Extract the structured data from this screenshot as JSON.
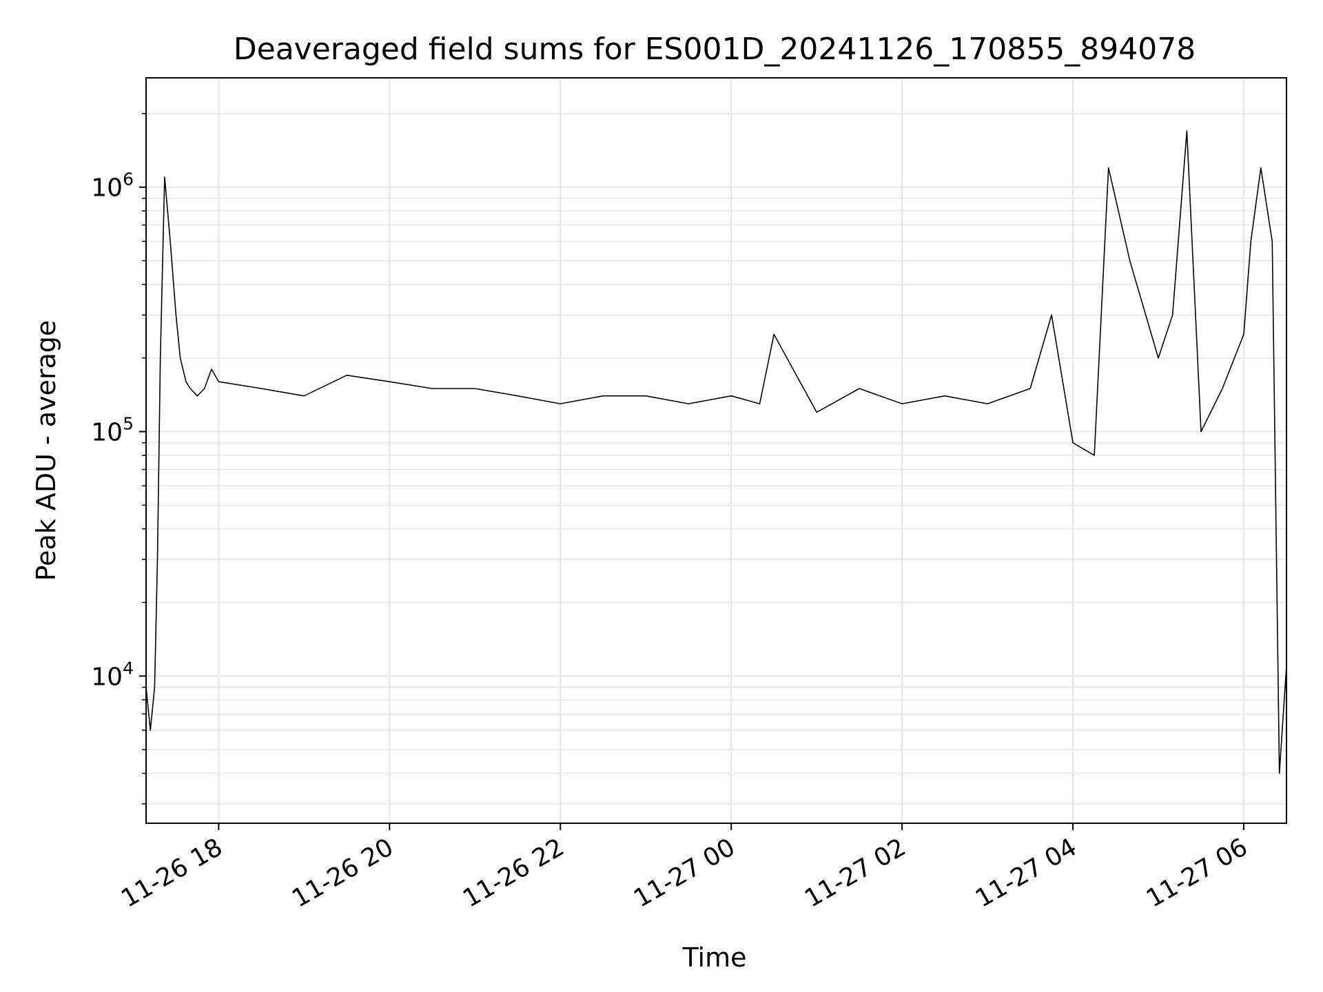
{
  "chart_data": {
    "type": "line",
    "title": "Deaveraged field sums for ES001D_20241126_170855_894078",
    "xlabel": "Time",
    "ylabel": "Peak ADU - average",
    "yscale": "log",
    "x_is_time": true,
    "xlim": [
      "2024-11-26 17:09",
      "2024-11-27 06:30"
    ],
    "ylim": [
      2500,
      2800000
    ],
    "x_ticks": [
      {
        "t": "2024-11-26 18:00",
        "label": "11-26 18"
      },
      {
        "t": "2024-11-26 20:00",
        "label": "11-26 20"
      },
      {
        "t": "2024-11-26 22:00",
        "label": "11-26 22"
      },
      {
        "t": "2024-11-27 00:00",
        "label": "11-27 00"
      },
      {
        "t": "2024-11-27 02:00",
        "label": "11-27 02"
      },
      {
        "t": "2024-11-27 04:00",
        "label": "11-27 04"
      },
      {
        "t": "2024-11-27 06:00",
        "label": "11-27 06"
      }
    ],
    "y_ticks": [
      {
        "value": 10000,
        "base": "10",
        "exp": "4"
      },
      {
        "value": 100000,
        "base": "10",
        "exp": "5"
      },
      {
        "value": 1000000,
        "base": "10",
        "exp": "6"
      }
    ],
    "grid": true,
    "line_color": "#000000",
    "series": [
      {
        "x": [
          "2024-11-26 17:09",
          "2024-11-26 17:12",
          "2024-11-26 17:15",
          "2024-11-26 17:17",
          "2024-11-26 17:19",
          "2024-11-26 17:22",
          "2024-11-26 17:26",
          "2024-11-26 17:30",
          "2024-11-26 17:33",
          "2024-11-26 17:37",
          "2024-11-26 17:40",
          "2024-11-26 17:45",
          "2024-11-26 17:50",
          "2024-11-26 17:55",
          "2024-11-26 18:00",
          "2024-11-26 18:30",
          "2024-11-26 19:00",
          "2024-11-26 19:30",
          "2024-11-26 20:00",
          "2024-11-26 20:30",
          "2024-11-26 21:00",
          "2024-11-26 21:30",
          "2024-11-26 22:00",
          "2024-11-26 22:30",
          "2024-11-26 23:00",
          "2024-11-26 23:30",
          "2024-11-27 00:00",
          "2024-11-27 00:20",
          "2024-11-27 00:30",
          "2024-11-27 01:00",
          "2024-11-27 01:30",
          "2024-11-27 02:00",
          "2024-11-27 02:30",
          "2024-11-27 03:00",
          "2024-11-27 03:30",
          "2024-11-27 03:45",
          "2024-11-27 04:00",
          "2024-11-27 04:15",
          "2024-11-27 04:25",
          "2024-11-27 04:40",
          "2024-11-27 05:00",
          "2024-11-27 05:10",
          "2024-11-27 05:20",
          "2024-11-27 05:30",
          "2024-11-27 05:45",
          "2024-11-27 06:00",
          "2024-11-27 06:05",
          "2024-11-27 06:12",
          "2024-11-27 06:20",
          "2024-11-27 06:25",
          "2024-11-27 06:30"
        ],
        "y": [
          9000,
          6000,
          9000,
          30000,
          200000,
          1100000,
          600000,
          300000,
          200000,
          160000,
          150000,
          140000,
          150000,
          180000,
          160000,
          150000,
          140000,
          170000,
          160000,
          150000,
          150000,
          140000,
          130000,
          140000,
          140000,
          130000,
          140000,
          130000,
          250000,
          120000,
          150000,
          130000,
          140000,
          130000,
          150000,
          300000,
          90000,
          80000,
          1200000,
          500000,
          200000,
          300000,
          1700000,
          100000,
          150000,
          250000,
          600000,
          1200000,
          600000,
          4000,
          11000
        ]
      }
    ]
  }
}
